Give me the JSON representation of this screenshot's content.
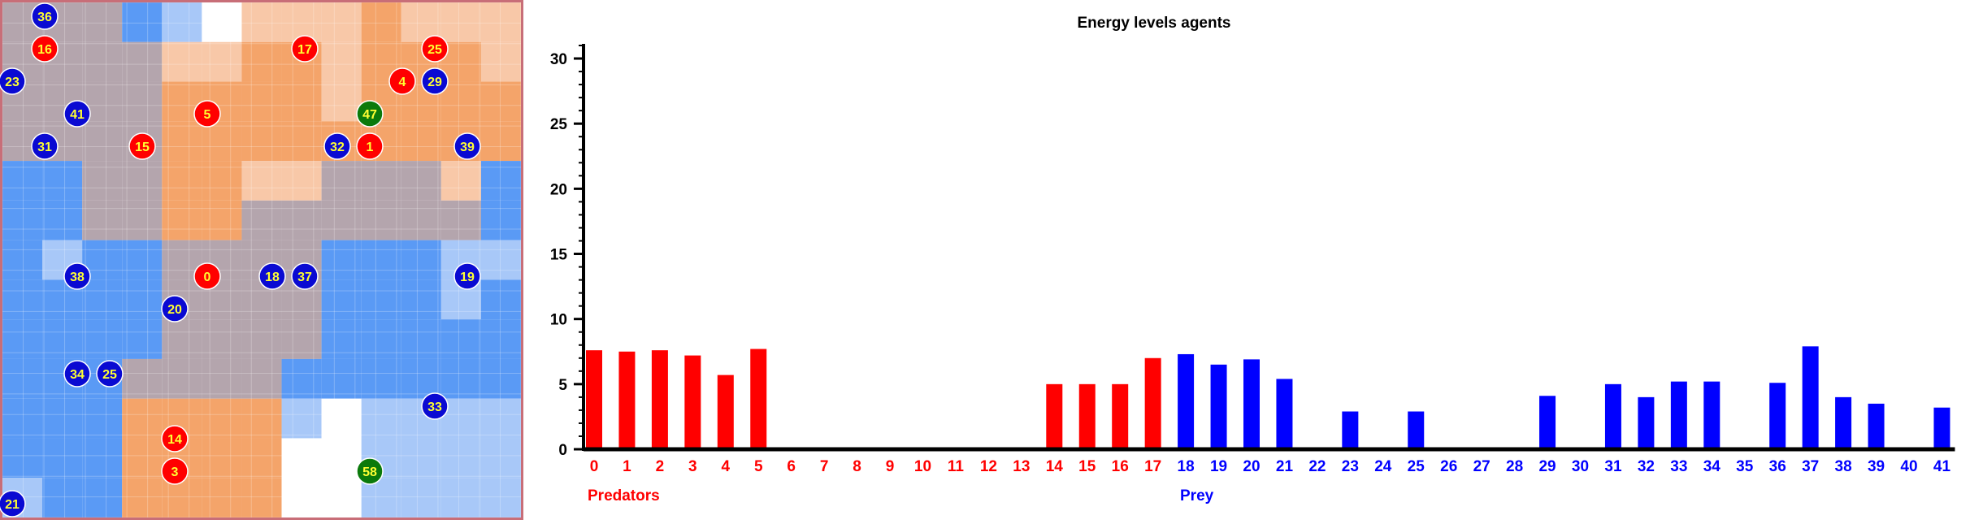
{
  "grid": {
    "colors": {
      "red": "#ff0000",
      "blue": "#0a0ad2",
      "green": "#0b7a0b",
      "label": "#ffff33",
      "border": "#c86e78",
      "orange": "#f4a46a",
      "mauve": "#b4a5ad",
      "blue_dark": "#5a9af5",
      "blue_light": "#a8c8f8",
      "white": "#ffffff",
      "peach": "#f8c8a8"
    },
    "cells": [
      "mmmDLWPPPOPPP",
      "mmmmPPOOPOOOP",
      "mmmmOOOOPOOOO",
      "mmmmOOOOOOOOO",
      "DDmmOOPPmmmPD",
      "DDmmOOmmmmmmD",
      "DLDDmmmmDDDLL",
      "DDDDmmmmDDDLD",
      "DDDDmmmmDDDDD",
      "DDDmmmmDDDDDD",
      "DDDOOOOLWLLLL",
      "DDDOOOOWWLLLL",
      "LDDOOOOWWLLLL"
    ],
    "predators": [
      {
        "id": "16",
        "col": 1,
        "row": 1
      },
      {
        "id": "17",
        "col": 9,
        "row": 1
      },
      {
        "id": "25",
        "col": 13,
        "row": 1
      },
      {
        "id": "4",
        "col": 12,
        "row": 2
      },
      {
        "id": "5",
        "col": 6,
        "row": 3
      },
      {
        "id": "15",
        "col": 4,
        "row": 4
      },
      {
        "id": "1",
        "col": 11,
        "row": 4
      },
      {
        "id": "0",
        "col": 6,
        "row": 8
      },
      {
        "id": "14",
        "col": 5,
        "row": 13
      },
      {
        "id": "3",
        "col": 5,
        "row": 14
      }
    ],
    "prey": [
      {
        "id": "36",
        "col": 1,
        "row": 0
      },
      {
        "id": "23",
        "col": 0,
        "row": 2
      },
      {
        "id": "29",
        "col": 13,
        "row": 2
      },
      {
        "id": "41",
        "col": 2,
        "row": 3
      },
      {
        "id": "31",
        "col": 1,
        "row": 4
      },
      {
        "id": "32",
        "col": 10,
        "row": 4
      },
      {
        "id": "39",
        "col": 14,
        "row": 4
      },
      {
        "id": "38",
        "col": 2,
        "row": 8
      },
      {
        "id": "18",
        "col": 8,
        "row": 8
      },
      {
        "id": "37",
        "col": 9,
        "row": 8
      },
      {
        "id": "19",
        "col": 14,
        "row": 8
      },
      {
        "id": "20",
        "col": 5,
        "row": 9
      },
      {
        "id": "34",
        "col": 2,
        "row": 11
      },
      {
        "id": "25",
        "col": 3,
        "row": 11
      },
      {
        "id": "33",
        "col": 13,
        "row": 12
      },
      {
        "id": "21",
        "col": 0,
        "row": 15
      }
    ],
    "others": [
      {
        "id": "47",
        "col": 11,
        "row": 3
      },
      {
        "id": "58",
        "col": 11,
        "row": 14
      }
    ]
  },
  "chart_data": {
    "type": "bar",
    "title": "Energy levels agents",
    "ylim": [
      0,
      31
    ],
    "yticks": [
      "0",
      "5",
      "10",
      "15",
      "20",
      "25",
      "30"
    ],
    "categories": [
      "0",
      "1",
      "2",
      "3",
      "4",
      "5",
      "6",
      "7",
      "8",
      "9",
      "10",
      "11",
      "12",
      "13",
      "14",
      "15",
      "16",
      "17",
      "18",
      "19",
      "20",
      "21",
      "22",
      "23",
      "24",
      "25",
      "26",
      "27",
      "28",
      "29",
      "30",
      "31",
      "32",
      "33",
      "34",
      "35",
      "36",
      "37",
      "38",
      "39",
      "40",
      "41"
    ],
    "values": [
      7.6,
      7.5,
      7.6,
      7.2,
      5.7,
      7.7,
      0,
      0,
      0,
      0,
      0,
      0,
      0,
      0,
      5.0,
      5.0,
      5.0,
      7.0,
      7.3,
      6.5,
      6.9,
      5.4,
      0,
      2.9,
      0,
      2.9,
      0,
      0,
      0,
      4.1,
      0,
      5.0,
      4.0,
      5.2,
      5.2,
      0,
      5.1,
      7.9,
      4.0,
      3.5,
      0,
      3.2
    ],
    "group_colors": [
      "#ff0000",
      "#ff0000",
      "#ff0000",
      "#ff0000",
      "#ff0000",
      "#ff0000",
      "#ff0000",
      "#ff0000",
      "#ff0000",
      "#ff0000",
      "#ff0000",
      "#ff0000",
      "#ff0000",
      "#ff0000",
      "#ff0000",
      "#ff0000",
      "#ff0000",
      "#ff0000",
      "#0000ff",
      "#0000ff",
      "#0000ff",
      "#0000ff",
      "#0000ff",
      "#0000ff",
      "#0000ff",
      "#0000ff",
      "#0000ff",
      "#0000ff",
      "#0000ff",
      "#0000ff",
      "#0000ff",
      "#0000ff",
      "#0000ff",
      "#0000ff",
      "#0000ff",
      "#0000ff",
      "#0000ff",
      "#0000ff",
      "#0000ff",
      "#0000ff",
      "#0000ff",
      "#0000ff"
    ],
    "group_labels": {
      "predators": "Predators",
      "prey": "Prey"
    },
    "colors": {
      "predators": "#ff0000",
      "prey": "#0000ff",
      "axis": "#000000"
    }
  }
}
